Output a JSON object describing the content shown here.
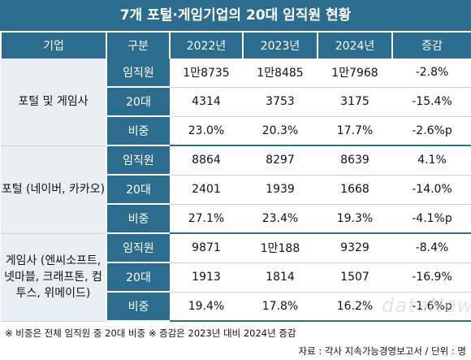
{
  "title": "7개 포털·게임기업의 20대 임직원 현황",
  "headers": [
    "기업",
    "구분",
    "2022년",
    "2023년",
    "2024년",
    "증감"
  ],
  "groups": [
    {
      "company": "포털 및 게임사",
      "rows": [
        {
          "category": "임직원",
          "v2022": "1만8735",
          "v2023": "1만8485",
          "v2024": "1만7968",
          "change": "-2.8%"
        },
        {
          "category": "20대",
          "v2022": "4314",
          "v2023": "3753",
          "v2024": "3175",
          "change": "-15.4%"
        },
        {
          "category": "비중",
          "v2022": "23.0%",
          "v2023": "20.3%",
          "v2024": "17.7%",
          "change": "-2.6%p"
        }
      ]
    },
    {
      "company": "포털 (네이버, 카카오)",
      "rows": [
        {
          "category": "임직원",
          "v2022": "8864",
          "v2023": "8297",
          "v2024": "8639",
          "change": "4.1%"
        },
        {
          "category": "20대",
          "v2022": "2401",
          "v2023": "1939",
          "v2024": "1668",
          "change": "-14.0%"
        },
        {
          "category": "비중",
          "v2022": "27.1%",
          "v2023": "23.4%",
          "v2024": "19.3%",
          "change": "-4.1%p"
        }
      ]
    },
    {
      "company": "게임사 (엔씨소프트, 넷마블, 크래프톤, 컴투스, 위메이드)",
      "rows": [
        {
          "category": "임직원",
          "v2022": "9871",
          "v2023": "1만188",
          "v2024": "9329",
          "change": "-8.4%"
        },
        {
          "category": "20대",
          "v2022": "1913",
          "v2023": "1814",
          "v2024": "1507",
          "change": "-16.9%"
        },
        {
          "category": "비중",
          "v2022": "19.4%",
          "v2023": "17.8%",
          "v2024": "16.2%",
          "change": "-1.6%p"
        }
      ]
    }
  ],
  "notes": "※ 비중은 전체 임직원 중 20대 비중  ※ 증감은 2023년 대비 2024년 증감",
  "source": "자료 : 각사 지속가능경영보고서 / 단위 : 명",
  "watermark": "dataNews"
}
